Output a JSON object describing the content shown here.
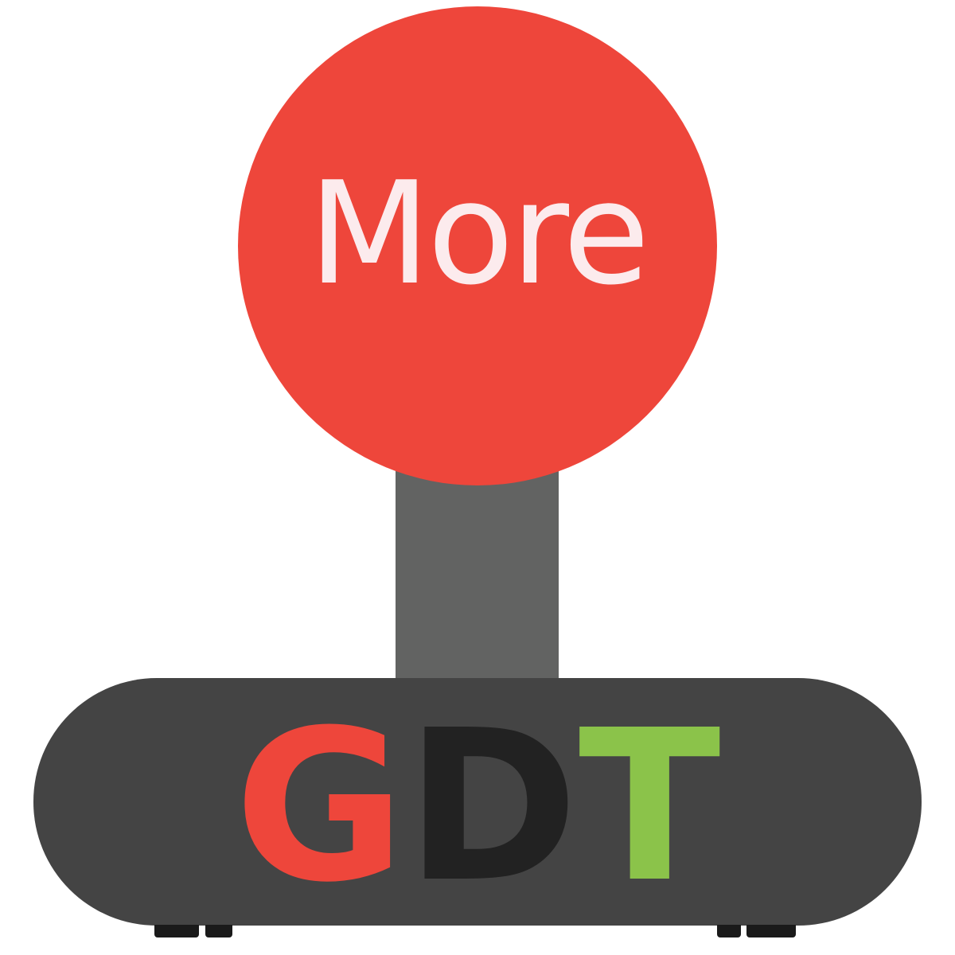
{
  "logo": {
    "knob_text": "More",
    "base_letters": [
      {
        "char": "G",
        "color": "#ee463b"
      },
      {
        "char": "D",
        "color": "#222222"
      },
      {
        "char": "T",
        "color": "#8bc34a"
      }
    ]
  },
  "colors": {
    "knob": "#ee463b",
    "knob_text": "#fcebed",
    "stem": "#626362",
    "base": "#444444",
    "feet": "#1a1a1a",
    "background": "#ffffff"
  }
}
